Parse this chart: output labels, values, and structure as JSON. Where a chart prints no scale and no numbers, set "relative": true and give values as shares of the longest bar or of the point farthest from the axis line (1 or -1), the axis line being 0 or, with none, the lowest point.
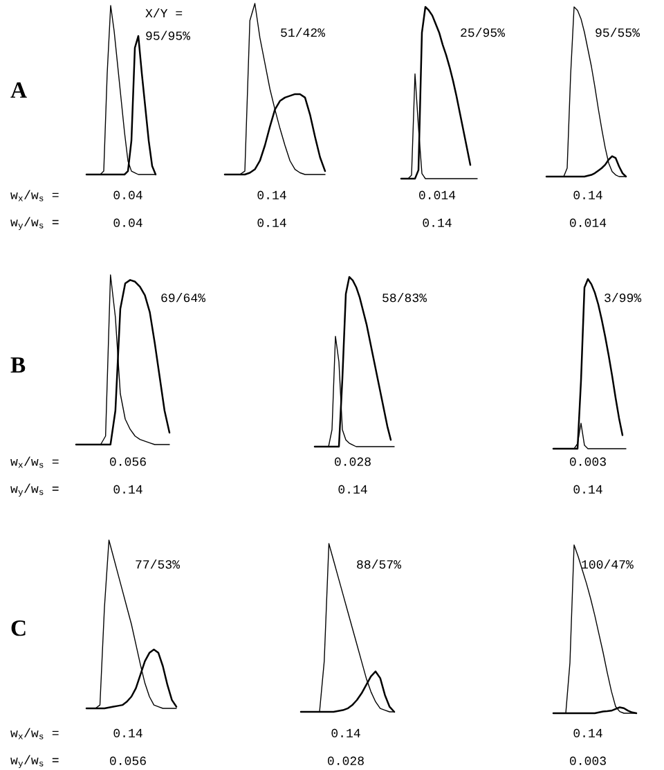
{
  "chart_data": [
    {
      "type": "line",
      "relative": true,
      "title": "A",
      "ylabel": "w$_{x}$/w$_{s}$ =\nw$_{y}$/w$_{s}$ =",
      "annotations": [
        "X/Y =\n95/95%",
        "0.04",
        "0.04"
      ],
      "categories": [
        null,
        null,
        null,
        null,
        null,
        null,
        null,
        null,
        null,
        null,
        null,
        null,
        null,
        null,
        null,
        null,
        null,
        null,
        null,
        null,
        null
      ],
      "series": [
        {
          "color": "#000000",
          "values": [
            0,
            0,
            0,
            0,
            0,
            0.02,
            0.6,
            1.0,
            0.85,
            0.65,
            0.45,
            0.25,
            0.08,
            0.02,
            0.01,
            0,
            0,
            0,
            0,
            0,
            0
          ]
        },
        {
          "color": "#000000",
          "values": [
            0,
            0,
            0,
            0,
            0,
            0,
            0,
            0,
            0,
            0,
            0,
            0,
            0.02,
            0.2,
            0.75,
            0.82,
            0.6,
            0.4,
            0.2,
            0.05,
            0
          ]
        }
      ]
    },
    {
      "type": "line",
      "relative": true,
      "annotations": [
        "51/42%",
        "0.14",
        "0.14"
      ],
      "categories": [
        null,
        null,
        null,
        null,
        null,
        null,
        null,
        null,
        null,
        null,
        null,
        null,
        null,
        null,
        null,
        null,
        null,
        null,
        null,
        null,
        null
      ],
      "series": [
        {
          "color": "#000000",
          "values": [
            0,
            0,
            0,
            0,
            0.02,
            0.9,
            1.0,
            0.8,
            0.65,
            0.5,
            0.38,
            0.27,
            0.17,
            0.08,
            0.03,
            0.01,
            0,
            0,
            0,
            0,
            0
          ]
        },
        {
          "color": "#000000",
          "values": [
            0,
            0,
            0,
            0,
            0,
            0.01,
            0.03,
            0.08,
            0.17,
            0.28,
            0.38,
            0.43,
            0.45,
            0.46,
            0.47,
            0.47,
            0.45,
            0.35,
            0.22,
            0.1,
            0.02
          ]
        }
      ]
    },
    {
      "type": "line",
      "relative": true,
      "annotations": [
        "25/95%",
        "0.014",
        "0.14"
      ],
      "categories": [
        null,
        null,
        null,
        null,
        null,
        null,
        null,
        null,
        null,
        null,
        null,
        null,
        null,
        null,
        null,
        null,
        null,
        null,
        null,
        null,
        null,
        null,
        null
      ],
      "series": [
        {
          "color": "#000000",
          "values": [
            0,
            0,
            0,
            0.02,
            0.61,
            0.3,
            0.03,
            0,
            0,
            0,
            0,
            0,
            0,
            0,
            0,
            0,
            0,
            0,
            0,
            0,
            0,
            0,
            0
          ]
        },
        {
          "color": "#000000",
          "values": [
            0,
            0,
            0,
            0,
            0,
            0.05,
            0.85,
            1.0,
            0.98,
            0.95,
            0.9,
            0.85,
            0.78,
            0.72,
            0.65,
            0.57,
            0.48,
            0.38,
            0.28,
            0.18,
            0.08,
            null,
            null
          ]
        }
      ]
    },
    {
      "type": "line",
      "relative": true,
      "annotations": [
        "95/55%",
        "0.14",
        "0.014"
      ],
      "categories": [
        null,
        null,
        null,
        null,
        null,
        null,
        null,
        null,
        null,
        null,
        null,
        null,
        null,
        null,
        null,
        null,
        null,
        null,
        null,
        null,
        null,
        null,
        null,
        null
      ],
      "series": [
        {
          "color": "#000000",
          "values": [
            0,
            0,
            0,
            0,
            0,
            0,
            0.05,
            0.6,
            1.0,
            0.98,
            0.93,
            0.85,
            0.75,
            0.65,
            0.53,
            0.4,
            0.28,
            0.17,
            0.08,
            0.03,
            0.01,
            0,
            0,
            0
          ]
        },
        {
          "color": "#000000",
          "values": [
            0,
            0,
            0,
            0,
            0,
            0,
            0,
            0,
            0,
            0,
            0,
            0,
            0.005,
            0.01,
            0.02,
            0.035,
            0.05,
            0.07,
            0.1,
            0.12,
            0.11,
            0.06,
            0.02,
            0
          ]
        }
      ]
    },
    {
      "type": "line",
      "relative": true,
      "title": "B",
      "ylabel": "w$_{x}$/w$_{s}$ =\nw$_{y}$/w$_{s}$ =",
      "annotations": [
        "69/64%",
        "0.056",
        "0.14"
      ],
      "categories": [
        null,
        null,
        null,
        null,
        null,
        null,
        null,
        null,
        null,
        null,
        null,
        null,
        null,
        null,
        null,
        null,
        null,
        null,
        null,
        null
      ],
      "series": [
        {
          "color": "#000000",
          "values": [
            0,
            0,
            0,
            0,
            0,
            0,
            0.05,
            1.0,
            0.75,
            0.3,
            0.15,
            0.09,
            0.05,
            0.03,
            0.02,
            0.01,
            0,
            0,
            0,
            0
          ]
        },
        {
          "color": "#000000",
          "values": [
            0,
            0,
            0,
            0,
            0,
            0,
            0,
            0,
            0.2,
            0.8,
            0.95,
            0.97,
            0.96,
            0.93,
            0.88,
            0.78,
            0.6,
            0.4,
            0.2,
            0.07
          ]
        }
      ]
    },
    {
      "type": "line",
      "relative": true,
      "annotations": [
        "58/83%",
        "0.028",
        "0.14"
      ],
      "categories": [
        null,
        null,
        null,
        null,
        null,
        null,
        null,
        null,
        null,
        null,
        null,
        null,
        null,
        null,
        null,
        null,
        null,
        null,
        null,
        null,
        null,
        null,
        null,
        null
      ],
      "series": [
        {
          "color": "#000000",
          "values": [
            0,
            0,
            0,
            0,
            0,
            0.1,
            0.65,
            0.5,
            0.1,
            0.04,
            0.02,
            0.01,
            0,
            0,
            0,
            0,
            0,
            0,
            0,
            0,
            0,
            0,
            0,
            0
          ]
        },
        {
          "color": "#000000",
          "values": [
            0,
            0,
            0,
            0,
            0,
            0,
            0,
            0,
            0.4,
            0.9,
            1.0,
            0.98,
            0.94,
            0.88,
            0.8,
            0.72,
            0.62,
            0.52,
            0.42,
            0.32,
            0.22,
            0.12,
            0.04,
            null
          ]
        }
      ]
    },
    {
      "type": "line",
      "relative": true,
      "annotations": [
        "3/99%",
        "0.003",
        "0.14"
      ],
      "categories": [
        null,
        null,
        null,
        null,
        null,
        null,
        null,
        null,
        null,
        null,
        null,
        null,
        null,
        null,
        null,
        null,
        null,
        null,
        null,
        null,
        null,
        null
      ],
      "series": [
        {
          "color": "#000000",
          "values": [
            0,
            0,
            0,
            0,
            0,
            0,
            0,
            0.03,
            0.15,
            0.02,
            0,
            0,
            0,
            0,
            0,
            0,
            0,
            0,
            0,
            0,
            0,
            0
          ]
        },
        {
          "color": "#000000",
          "values": [
            0,
            0,
            0,
            0,
            0,
            0,
            0,
            0,
            0.4,
            0.95,
            1.0,
            0.97,
            0.92,
            0.85,
            0.76,
            0.66,
            0.55,
            0.43,
            0.3,
            0.18,
            0.08,
            null
          ]
        }
      ]
    },
    {
      "type": "line",
      "relative": true,
      "title": "C",
      "ylabel": "w$_{x}$/w$_{s}$ =\nw$_{y}$/w$_{s}$ =",
      "annotations": [
        "77/53%",
        "0.14",
        "0.056"
      ],
      "categories": [
        null,
        null,
        null,
        null,
        null,
        null,
        null,
        null,
        null,
        null,
        null,
        null,
        null,
        null,
        null,
        null,
        null,
        null,
        null,
        null,
        null
      ],
      "series": [
        {
          "color": "#000000",
          "values": [
            0,
            0,
            0,
            0.02,
            0.6,
            1.0,
            0.9,
            0.8,
            0.7,
            0.6,
            0.5,
            0.38,
            0.26,
            0.15,
            0.07,
            0.02,
            0.01,
            0,
            0,
            0,
            0
          ]
        },
        {
          "color": "#000000",
          "values": [
            0,
            0,
            0,
            0,
            0,
            0.005,
            0.01,
            0.015,
            0.02,
            0.04,
            0.07,
            0.12,
            0.2,
            0.28,
            0.33,
            0.35,
            0.33,
            0.25,
            0.14,
            0.05,
            0.01
          ]
        }
      ]
    },
    {
      "type": "line",
      "relative": true,
      "annotations": [
        "88/57%",
        "0.14",
        "0.028"
      ],
      "categories": [
        null,
        null,
        null,
        null,
        null,
        null,
        null,
        null,
        null,
        null,
        null,
        null,
        null,
        null,
        null,
        null,
        null,
        null,
        null,
        null,
        null
      ],
      "series": [
        {
          "color": "#000000",
          "values": [
            0,
            0,
            0,
            0,
            0,
            0.3,
            1.0,
            0.9,
            0.8,
            0.7,
            0.6,
            0.5,
            0.4,
            0.3,
            0.2,
            0.12,
            0.06,
            0.02,
            0.01,
            0,
            0
          ]
        },
        {
          "color": "#000000",
          "values": [
            0,
            0,
            0,
            0,
            0,
            0,
            0,
            0,
            0.005,
            0.01,
            0.02,
            0.04,
            0.07,
            0.11,
            0.16,
            0.21,
            0.24,
            0.2,
            0.1,
            0.03,
            0
          ]
        }
      ]
    },
    {
      "type": "line",
      "relative": true,
      "annotations": [
        "100/47%",
        "0.14",
        "0.003"
      ],
      "categories": [
        null,
        null,
        null,
        null,
        null,
        null,
        null,
        null,
        null,
        null,
        null,
        null,
        null,
        null,
        null,
        null,
        null,
        null,
        null,
        null,
        null
      ],
      "series": [
        {
          "color": "#000000",
          "values": [
            0,
            0,
            0,
            0,
            0.3,
            1.0,
            0.93,
            0.85,
            0.77,
            0.68,
            0.58,
            0.47,
            0.36,
            0.24,
            0.13,
            0.04,
            0.01,
            0,
            0,
            0,
            0
          ]
        },
        {
          "color": "#000000",
          "values": [
            0,
            0,
            0,
            0,
            0,
            0,
            0,
            0,
            0,
            0,
            0,
            0.005,
            0.01,
            0.012,
            0.015,
            0.025,
            0.035,
            0.03,
            0.015,
            0.005,
            0
          ]
        }
      ]
    }
  ]
}
